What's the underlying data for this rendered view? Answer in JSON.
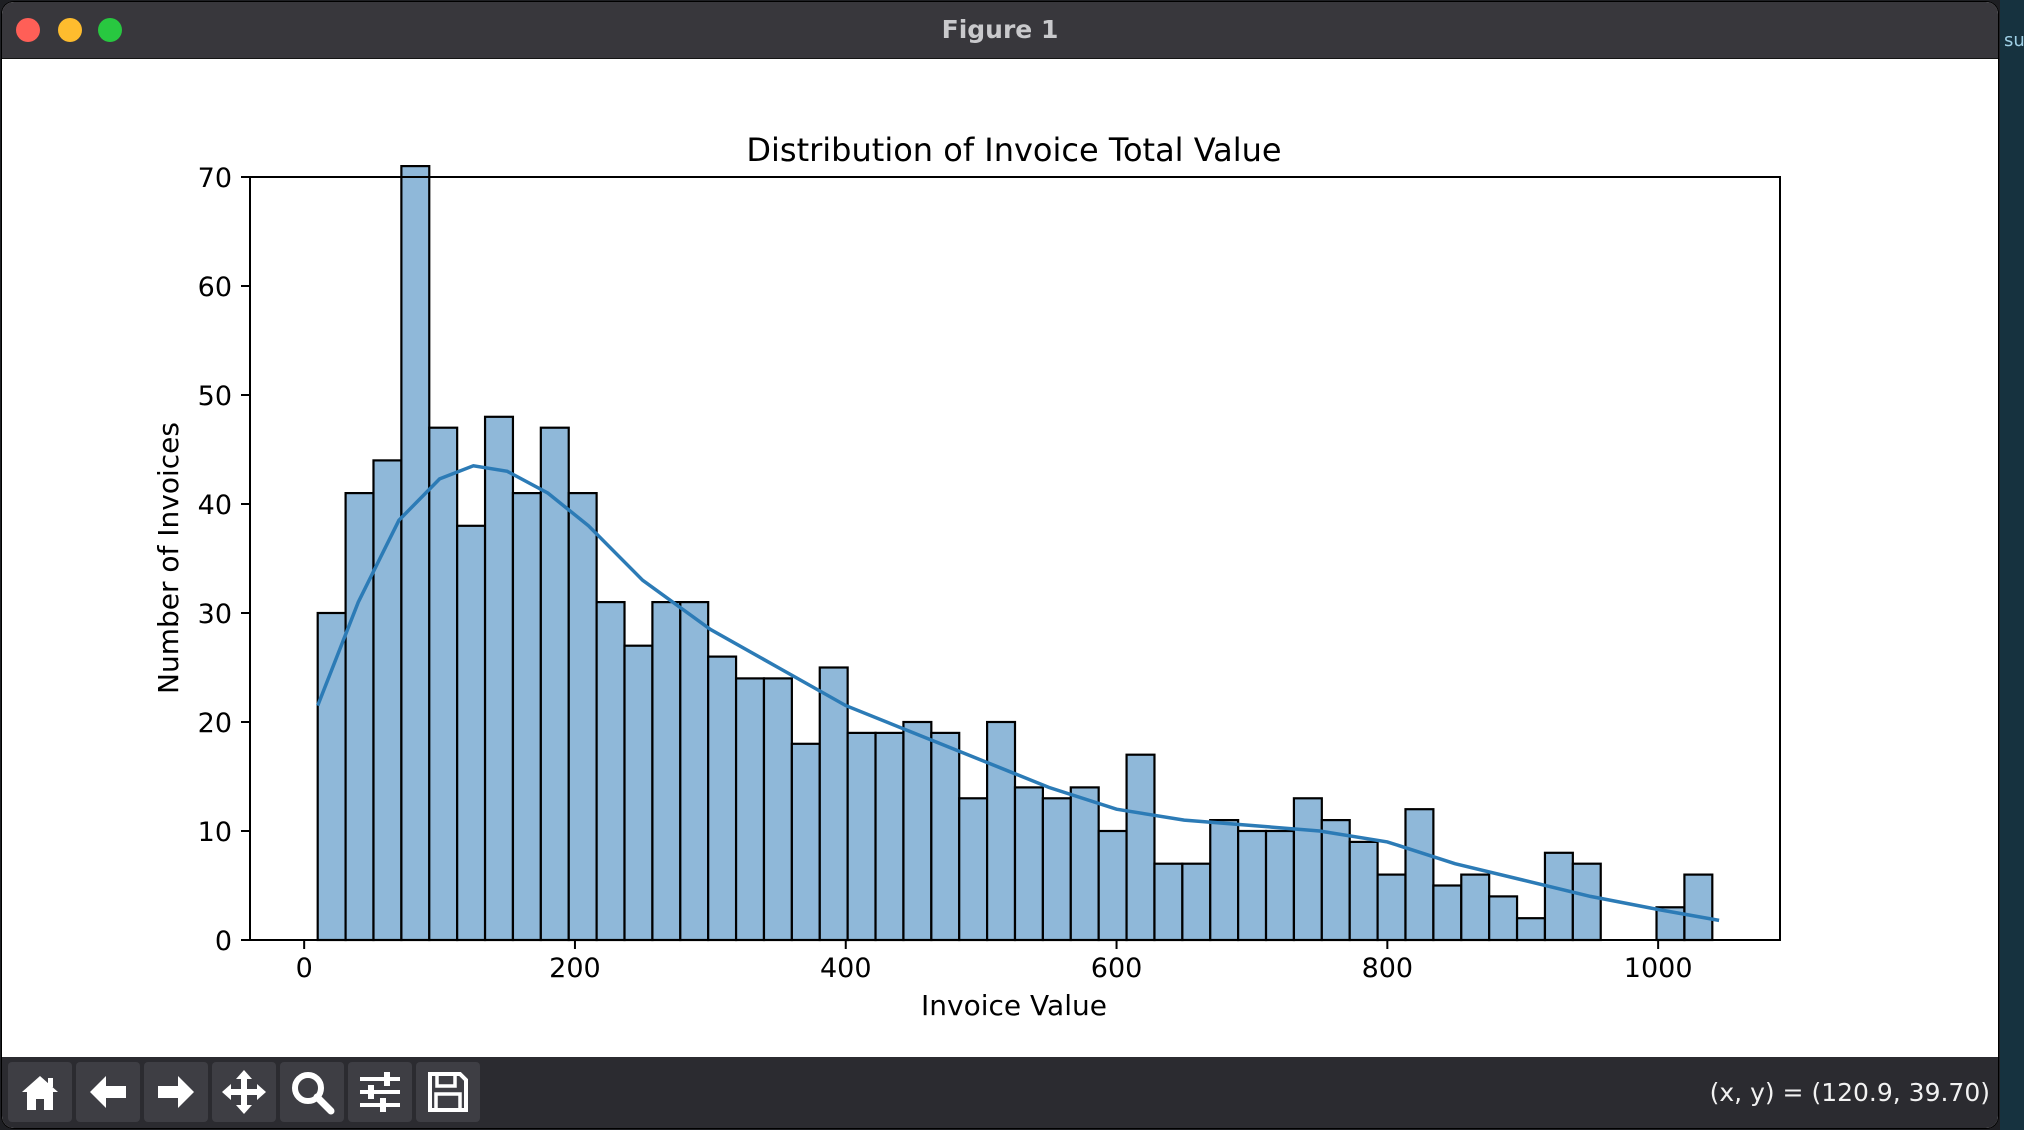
{
  "window": {
    "title": "Figure 1"
  },
  "desktop": {
    "edge_text": "su"
  },
  "toolbar": {
    "buttons": [
      {
        "name": "home-button",
        "icon": "home-icon"
      },
      {
        "name": "back-button",
        "icon": "arrow-left-icon"
      },
      {
        "name": "forward-button",
        "icon": "arrow-right-icon"
      },
      {
        "name": "pan-button",
        "icon": "move-icon"
      },
      {
        "name": "zoom-button",
        "icon": "magnifier-icon"
      },
      {
        "name": "configure-subplots-button",
        "icon": "sliders-icon"
      },
      {
        "name": "save-button",
        "icon": "floppy-disk-icon"
      }
    ],
    "coords": "(x, y) = (120.9, 39.70)"
  },
  "chart_data": {
    "type": "bar",
    "title": "Distribution of Invoice Total Value",
    "xlabel": "Invoice Value",
    "ylabel": "Number of Invoices",
    "xlim": [
      -40,
      1090
    ],
    "ylim": [
      0,
      70
    ],
    "xticks": [
      "0",
      "200",
      "400",
      "600",
      "800",
      "1000"
    ],
    "yticks": [
      "0",
      "10",
      "20",
      "30",
      "40",
      "50",
      "60",
      "70"
    ],
    "bin_start": 10,
    "bin_width": 20.6,
    "values": [
      30,
      41,
      44,
      71,
      47,
      38,
      48,
      41,
      47,
      41,
      31,
      27,
      31,
      31,
      26,
      24,
      24,
      18,
      25,
      19,
      19,
      20,
      19,
      13,
      20,
      14,
      13,
      14,
      10,
      17,
      7,
      7,
      11,
      10,
      10,
      13,
      11,
      9,
      6,
      12,
      5,
      6,
      4,
      2,
      8,
      7,
      0,
      0,
      3,
      6
    ],
    "bar_color": "#8fb8d9",
    "edge_color": "#000000",
    "kde": {
      "color": "#2c7bb6",
      "points": [
        [
          10,
          21.5
        ],
        [
          40,
          31
        ],
        [
          70,
          38.5
        ],
        [
          100,
          42.3
        ],
        [
          125,
          43.5
        ],
        [
          150,
          43
        ],
        [
          180,
          41
        ],
        [
          210,
          38
        ],
        [
          250,
          33
        ],
        [
          300,
          28.5
        ],
        [
          350,
          25
        ],
        [
          400,
          21.5
        ],
        [
          450,
          19
        ],
        [
          500,
          16.5
        ],
        [
          550,
          14
        ],
        [
          600,
          12
        ],
        [
          650,
          11
        ],
        [
          700,
          10.5
        ],
        [
          750,
          10
        ],
        [
          800,
          9
        ],
        [
          850,
          7
        ],
        [
          900,
          5.5
        ],
        [
          950,
          4
        ],
        [
          1000,
          2.8
        ],
        [
          1045,
          1.8
        ]
      ]
    },
    "grid": false
  }
}
